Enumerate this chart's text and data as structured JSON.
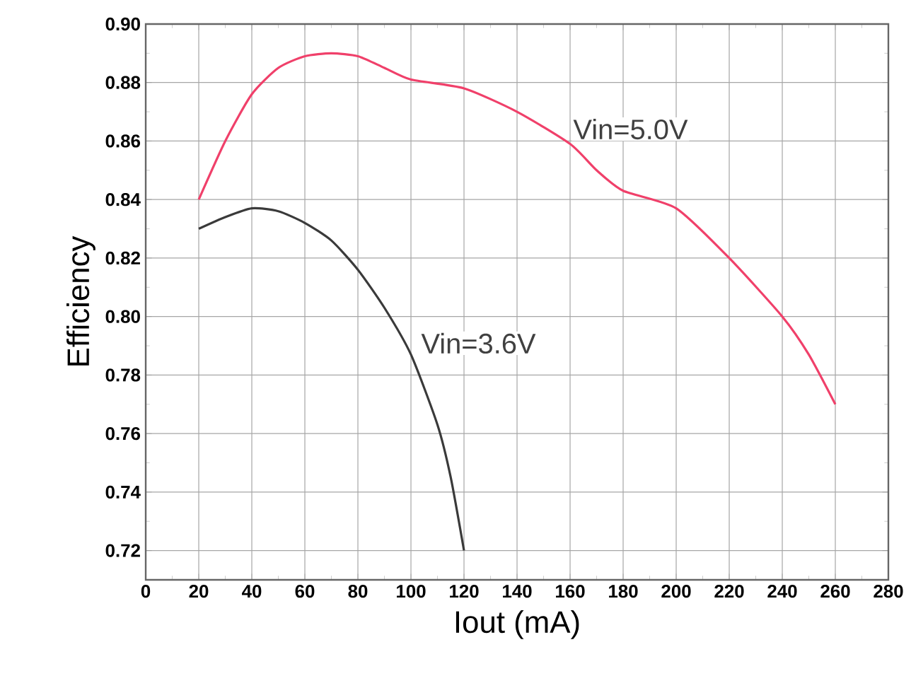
{
  "chart_data": {
    "type": "line",
    "xlabel": "Iout (mA)",
    "ylabel": "Efficiency",
    "xlim": [
      0,
      280
    ],
    "xticks": [
      0,
      20,
      40,
      60,
      80,
      100,
      120,
      140,
      160,
      180,
      200,
      220,
      240,
      260,
      280
    ],
    "ylim": [
      0.71,
      0.9
    ],
    "yticks": [
      0.72,
      0.74,
      0.76,
      0.78,
      {
        "value": 0.8,
        "label": "0.80"
      },
      0.82,
      0.84,
      0.86,
      0.88,
      {
        "value": 0.9,
        "label": "0.90"
      }
    ],
    "grid": true,
    "marker": "none",
    "line_style": "solid",
    "series": [
      {
        "name": "Vin=5.0V",
        "color": "#f0406a",
        "x": [
          20,
          30,
          40,
          50,
          60,
          70,
          80,
          90,
          100,
          120,
          140,
          160,
          170,
          180,
          200,
          220,
          240,
          250,
          260
        ],
        "values": [
          0.84,
          0.86,
          0.876,
          0.885,
          0.889,
          0.89,
          0.889,
          0.885,
          0.881,
          0.878,
          0.87,
          0.859,
          0.85,
          0.843,
          0.837,
          0.82,
          0.8,
          0.787,
          0.77
        ]
      },
      {
        "name": "Vin=3.6V",
        "color": "#3a3a3a",
        "x": [
          20,
          30,
          40,
          50,
          60,
          70,
          80,
          90,
          100,
          110,
          115,
          120
        ],
        "values": [
          0.83,
          0.834,
          0.837,
          0.836,
          0.832,
          0.826,
          0.816,
          0.803,
          0.787,
          0.763,
          0.745,
          0.72
        ]
      }
    ]
  }
}
